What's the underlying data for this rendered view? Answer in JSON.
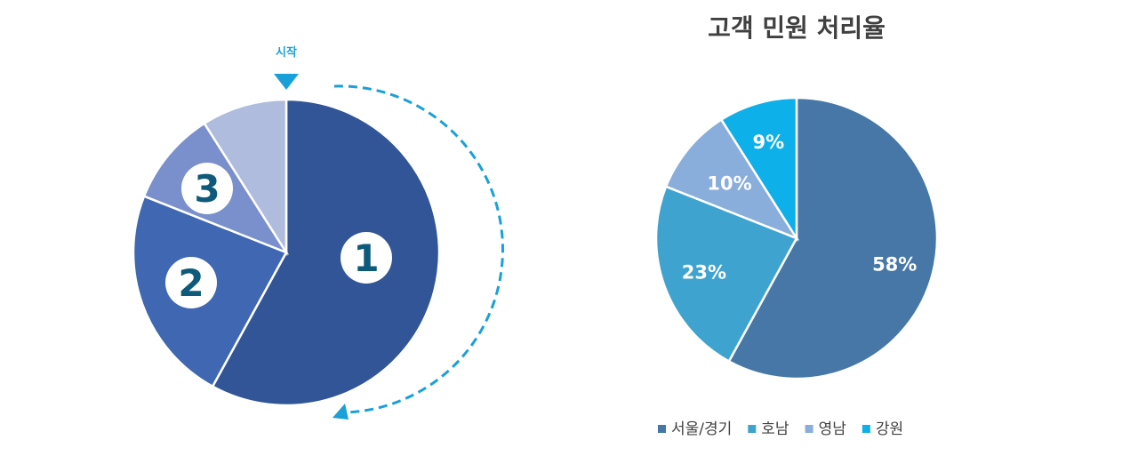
{
  "colors": {
    "diagram_slices": [
      "#315596",
      "#3f67b2",
      "#7a90cd",
      "#b0bcde"
    ],
    "badge_text": "#0e5a7a",
    "accent": "#1aa0d8",
    "title_text": "#404040",
    "legend_text": "#404040"
  },
  "diagram": {
    "start_label": "시작",
    "badges": [
      "1",
      "2",
      "3"
    ],
    "slice_values": [
      58,
      23,
      10,
      9
    ]
  },
  "chart_data": {
    "type": "pie",
    "title": "고객 민원 처리율",
    "categories": [
      "서울/경기",
      "호남",
      "영남",
      "강원"
    ],
    "values": [
      58,
      23,
      10,
      9
    ],
    "value_labels": [
      "58%",
      "23%",
      "10%",
      "9%"
    ],
    "colors": [
      "#4677a7",
      "#3fa3d0",
      "#89aedb",
      "#0eb0e9"
    ],
    "start_angle": "12 o'clock",
    "direction": "clockwise",
    "legend_position": "bottom"
  }
}
